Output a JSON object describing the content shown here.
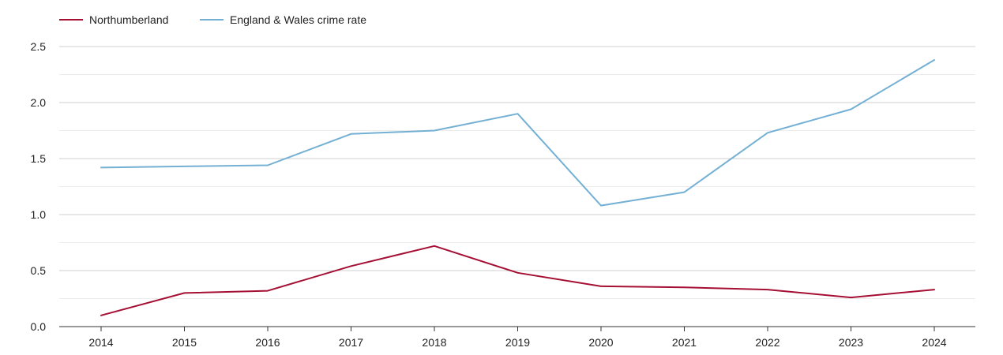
{
  "chart_data": {
    "type": "line",
    "title": "",
    "xlabel": "",
    "ylabel": "",
    "x": [
      "2014",
      "2015",
      "2016",
      "2017",
      "2018",
      "2019",
      "2020",
      "2021",
      "2022",
      "2023",
      "2024"
    ],
    "ylim": [
      0,
      2.5
    ],
    "yticks": [
      "0.0",
      "0.5",
      "1.0",
      "1.5",
      "2.0",
      "2.5"
    ],
    "grid": true,
    "legend_position": "top-left",
    "series": [
      {
        "name": "Northumberland",
        "color": "#a50f34",
        "values": [
          0.1,
          0.3,
          0.32,
          0.54,
          0.72,
          0.48,
          0.36,
          0.35,
          0.33,
          0.26,
          0.33
        ]
      },
      {
        "name": "England & Wales crime rate",
        "color": "#74b0d4",
        "values": [
          1.42,
          1.43,
          1.44,
          1.72,
          1.75,
          1.9,
          1.08,
          1.2,
          1.73,
          1.94,
          2.38
        ]
      }
    ]
  }
}
